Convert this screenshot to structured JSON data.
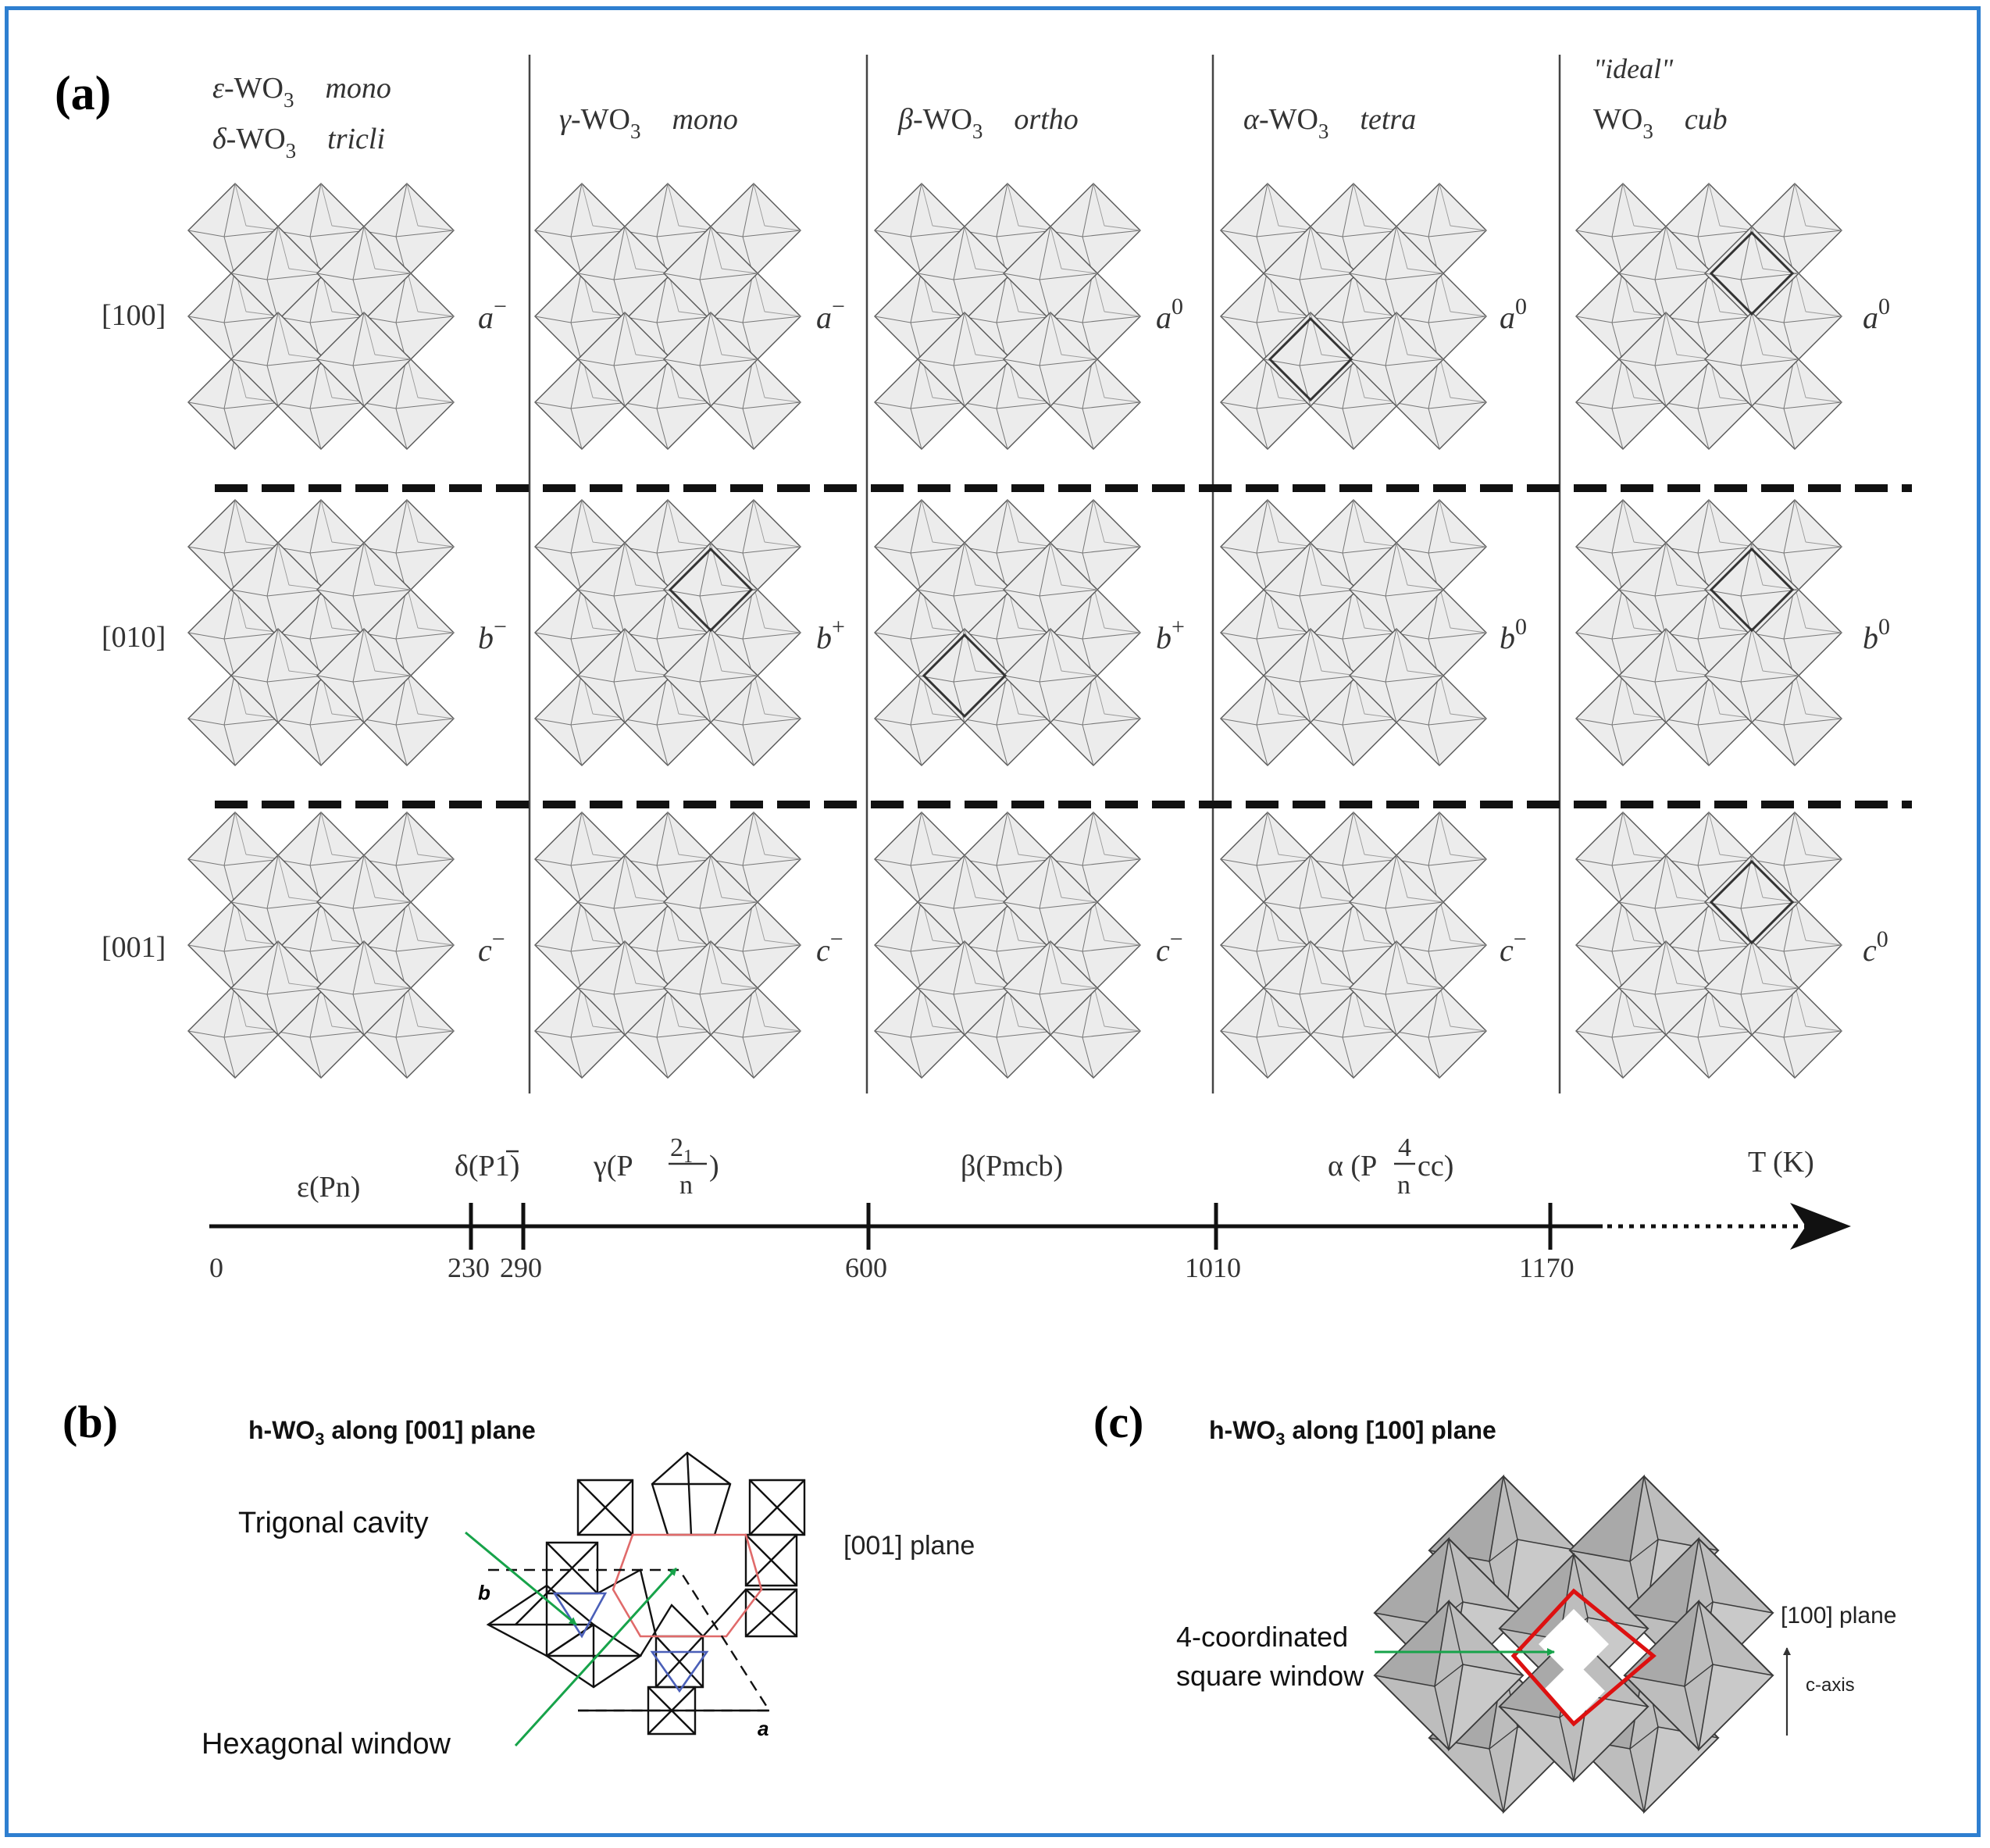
{
  "panel_labels": {
    "a": "(a)",
    "b": "(b)",
    "c": "(c)"
  },
  "columns": [
    {
      "phase1": {
        "greek": "ε",
        "name": "-WO",
        "sub": "3",
        "sys": "mono"
      },
      "phase2": {
        "greek": "δ",
        "name": "-WO",
        "sub": "3",
        "sys": "tricli"
      },
      "tilts": [
        {
          "base": "a",
          "sup": "−"
        },
        {
          "base": "b",
          "sup": "−"
        },
        {
          "base": "c",
          "sup": "−"
        }
      ]
    },
    {
      "phase1": {
        "greek": "γ",
        "name": "-WO",
        "sub": "3",
        "sys": "mono"
      },
      "tilts": [
        {
          "base": "a",
          "sup": "−"
        },
        {
          "base": "b",
          "sup": "+"
        },
        {
          "base": "c",
          "sup": "−"
        }
      ]
    },
    {
      "phase1": {
        "greek": "β",
        "name": "-WO",
        "sub": "3",
        "sys": "ortho"
      },
      "tilts": [
        {
          "base": "a",
          "sup": "0"
        },
        {
          "base": "b",
          "sup": "+"
        },
        {
          "base": "c",
          "sup": "−"
        }
      ]
    },
    {
      "phase1": {
        "greek": "α",
        "name": "-WO",
        "sub": "3",
        "sys": "tetra"
      },
      "tilts": [
        {
          "base": "a",
          "sup": "0"
        },
        {
          "base": "b",
          "sup": "0"
        },
        {
          "base": "c",
          "sup": "−"
        }
      ]
    },
    {
      "ideal": "\"ideal\"",
      "phase1": {
        "greek": "",
        "name": "WO",
        "sub": "3",
        "sys": "cub"
      },
      "tilts": [
        {
          "base": "a",
          "sup": "0"
        },
        {
          "base": "b",
          "sup": "0"
        },
        {
          "base": "c",
          "sup": "0"
        }
      ]
    }
  ],
  "row_labels": [
    "[100]",
    "[010]",
    "[001]"
  ],
  "axis": {
    "ticks": [
      "0",
      "230",
      "290",
      "600",
      "1010",
      "1170"
    ],
    "tick_values": [
      0,
      230,
      290,
      600,
      1010,
      1170
    ],
    "unit_label": "T (K)",
    "phases": {
      "epsilon": "ε(Pn)",
      "delta_pre": "δ(P",
      "delta_bar": "1",
      "delta_post": ")",
      "gamma_pre": "γ(P",
      "gamma_num": "2",
      "gamma_num_sub": "1",
      "gamma_den": "n",
      "gamma_post": ")",
      "beta": "β(Pmcb)",
      "alpha_pre": "α (P",
      "alpha_num": "4",
      "alpha_den": "n",
      "alpha_post": "cc)"
    }
  },
  "panel_b": {
    "title_pre": "h-WO",
    "title_sub": "3",
    "title_post": " along [001] plane",
    "trigonal": "Trigonal cavity",
    "hexagonal": "Hexagonal  window",
    "plane": "[001] plane",
    "axis_b": "b",
    "axis_a": "a",
    "colors": {
      "hexagon": "#e06a6a",
      "triangle": "#4a5fb8",
      "arrow": "#17a34a"
    }
  },
  "panel_c": {
    "title_pre": "h-WO",
    "title_sub": "3",
    "title_post": " along [100] plane",
    "window_l1": "4-coordinated",
    "window_l2": "square  window",
    "plane": "[100] plane",
    "axis": "c-axis",
    "colors": {
      "square": "#dd1111",
      "octahedra": "#b9b9b9",
      "arrow": "#17a34a"
    }
  },
  "frame_color": "#2e7fd0"
}
